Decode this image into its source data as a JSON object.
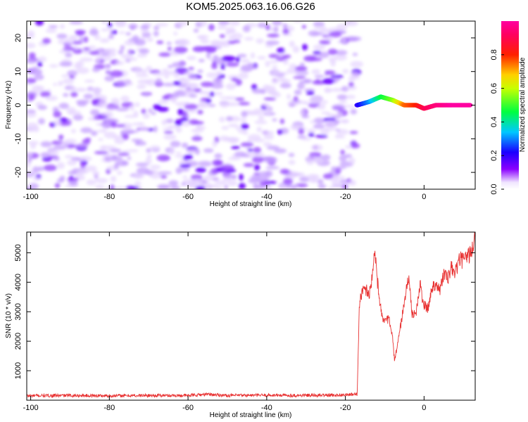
{
  "title": "KOM5.2025.063.16.06.G26",
  "colors": {
    "snr_line": "#e83232",
    "spectrum_base": "#7a00ff",
    "axis": "#000000"
  },
  "chart_data": [
    {
      "type": "heatmap",
      "xlabel": "Height of straight line (km)",
      "ylabel": "Frequency (Hz)",
      "xlim": [
        -101,
        13
      ],
      "ylim": [
        -25,
        25
      ],
      "xticks": [
        -100,
        -80,
        -60,
        -40,
        -20,
        0
      ],
      "yticks": [
        -20,
        -10,
        0,
        10,
        20
      ],
      "colorbar": {
        "label": "Normalized spectral amplitude",
        "range": [
          0,
          1
        ],
        "ticks": [
          "0.0",
          "0.2",
          "0.4",
          "0.6",
          "0.8"
        ],
        "colormap": "hsv: white → violet → blue → cyan → green → yellow → red → pink"
      },
      "data_extent_x": [
        -101,
        -17
      ],
      "dominant_trace": [
        {
          "x": -17,
          "freq": 0,
          "amp": 0.2
        },
        {
          "x": -14,
          "freq": 1,
          "amp": 0.3
        },
        {
          "x": -11,
          "freq": 2.5,
          "amp": 0.45
        },
        {
          "x": -8,
          "freq": 1.5,
          "amp": 0.55
        },
        {
          "x": -5,
          "freq": 0,
          "amp": 0.75
        },
        {
          "x": -2,
          "freq": 0,
          "amp": 0.8
        },
        {
          "x": 0,
          "freq": -1,
          "amp": 0.9
        },
        {
          "x": 3,
          "freq": 0,
          "amp": 0.95
        },
        {
          "x": 7,
          "freq": 0,
          "amp": 1.0
        },
        {
          "x": 12,
          "freq": 0,
          "amp": 1.0
        }
      ]
    },
    {
      "type": "line",
      "xlabel": "Height of straight line (km)",
      "ylabel": "SNR (10 * v/v)",
      "xlim": [
        -101,
        13
      ],
      "ylim": [
        0,
        5700
      ],
      "xticks": [
        -100,
        -80,
        -60,
        -40,
        -20,
        0
      ],
      "yticks": [
        1000,
        2000,
        3000,
        4000,
        5000
      ],
      "series": [
        {
          "color": "#e83232",
          "x": [
            -101,
            -90,
            -80,
            -70,
            -60,
            -55,
            -50,
            -40,
            -30,
            -20,
            -17,
            -16.5,
            -16,
            -15,
            -14,
            -13,
            -12.5,
            -12,
            -11,
            -10,
            -9,
            -8,
            -7.5,
            -7,
            -6,
            -5,
            -4,
            -3,
            -2,
            -1,
            0,
            1,
            2,
            3,
            4,
            5,
            6,
            7,
            8,
            9,
            10,
            11,
            12,
            13
          ],
          "y": [
            150,
            160,
            150,
            160,
            160,
            200,
            160,
            170,
            160,
            180,
            200,
            3000,
            3600,
            3800,
            3600,
            4300,
            5300,
            4200,
            3100,
            2600,
            2800,
            2100,
            1300,
            1700,
            2500,
            3300,
            4200,
            2900,
            3000,
            3900,
            3200,
            3100,
            3800,
            4000,
            3700,
            4300,
            4100,
            4500,
            4300,
            4800,
            4700,
            4900,
            5000,
            5500
          ]
        }
      ]
    }
  ]
}
